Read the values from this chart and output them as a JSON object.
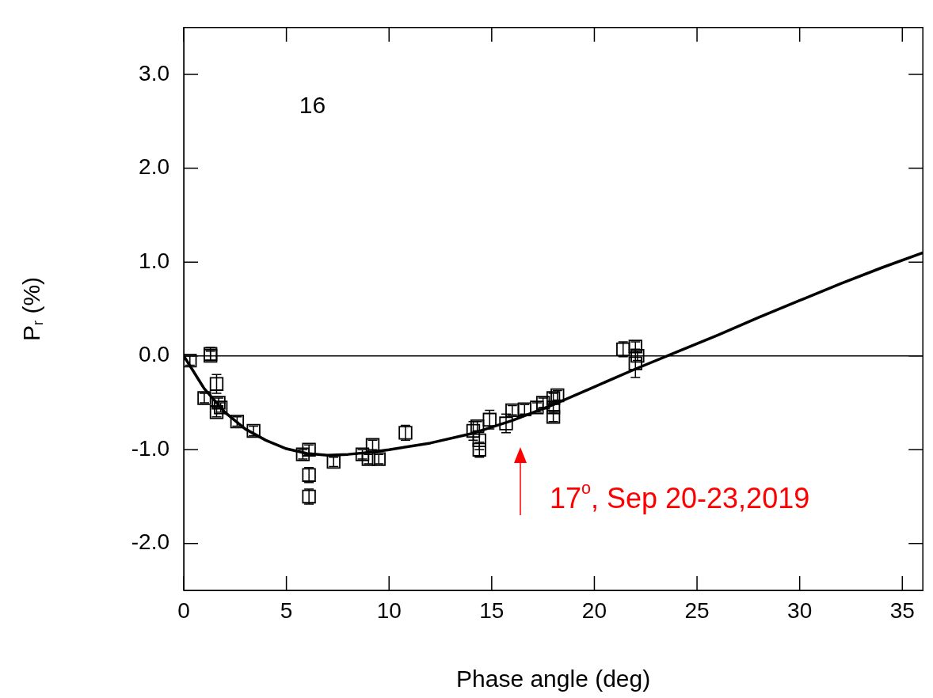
{
  "chart_data": {
    "type": "scatter",
    "xlabel": "Phase angle (deg)",
    "ylabel": "P$_{r}$ (%)",
    "xlim": [
      0,
      36
    ],
    "xticks": [
      0,
      5,
      10,
      15,
      20,
      25,
      30,
      35
    ],
    "ylim": [
      -2.5,
      3.5
    ],
    "yticks": [
      {
        "value": -2,
        "label": "-2.0"
      },
      {
        "value": -1,
        "label": "-1.0"
      },
      {
        "value": 0,
        "label": "0.0"
      },
      {
        "value": 1,
        "label": "1.0"
      },
      {
        "value": 2,
        "label": "2.0"
      },
      {
        "value": 3,
        "label": "3.0"
      }
    ],
    "grid": false,
    "legend": false,
    "marker": "square",
    "series": [
      {
        "color": "#000000",
        "x": [
          0.3,
          1.3,
          1.3,
          1.0,
          1.6,
          1.7,
          1.8,
          1.6,
          2.6,
          3.4,
          5.8,
          6.1,
          6.1,
          6.1,
          7.3,
          8.7,
          9.0,
          9.2,
          9.5,
          10.8,
          14.1,
          14.3,
          14.4,
          14.4,
          14.9,
          15.7,
          16.0,
          16.6,
          17.2,
          17.5,
          18.0,
          18.0,
          18.0,
          18.2,
          21.4,
          22.0,
          22.1,
          22.0
        ],
        "values": [
          -0.05,
          0.02,
          0.0,
          -0.45,
          -0.3,
          -0.5,
          -0.55,
          -0.6,
          -0.7,
          -0.8,
          -1.05,
          -1.0,
          -1.27,
          -1.5,
          -1.13,
          -1.05,
          -1.1,
          -0.95,
          -1.1,
          -0.82,
          -0.8,
          -0.75,
          -1.0,
          -0.9,
          -0.68,
          -0.72,
          -0.58,
          -0.57,
          -0.55,
          -0.5,
          -0.45,
          -0.55,
          -0.65,
          -0.42,
          0.07,
          0.1,
          0.0,
          -0.08
        ],
        "errors": [
          0.05,
          0.07,
          0.05,
          0.05,
          0.1,
          0.05,
          0.05,
          0.05,
          0.05,
          0.05,
          0.05,
          0.05,
          0.08,
          0.08,
          0.05,
          0.05,
          0.05,
          0.05,
          0.05,
          0.08,
          0.1,
          0.05,
          0.08,
          0.1,
          0.1,
          0.1,
          0.05,
          0.05,
          0.05,
          0.05,
          0.05,
          0.05,
          0.05,
          0.05,
          0.08,
          0.05,
          0.05,
          0.15
        ]
      },
      {
        "type": "line",
        "color": "#000000",
        "marker": "none",
        "line_style": "solid",
        "x": [
          0,
          1,
          2,
          3,
          4,
          5,
          6,
          7,
          8,
          9,
          10,
          12,
          14,
          16,
          18,
          20,
          22,
          24,
          26,
          28,
          30,
          32,
          34,
          36
        ],
        "values": [
          0,
          -0.35,
          -0.6,
          -0.78,
          -0.9,
          -0.99,
          -1.04,
          -1.06,
          -1.05,
          -1.03,
          -1.0,
          -0.93,
          -0.83,
          -0.69,
          -0.52,
          -0.33,
          -0.14,
          0.04,
          0.22,
          0.41,
          0.59,
          0.77,
          0.94,
          1.1
        ]
      }
    ],
    "ref_lines": [
      {
        "axis": "y",
        "value": 0,
        "color": "#000000",
        "line_style": "solid"
      }
    ],
    "annotations": [
      "16",
      "17$^{o}$, Sep 20-23,2019"
    ]
  }
}
